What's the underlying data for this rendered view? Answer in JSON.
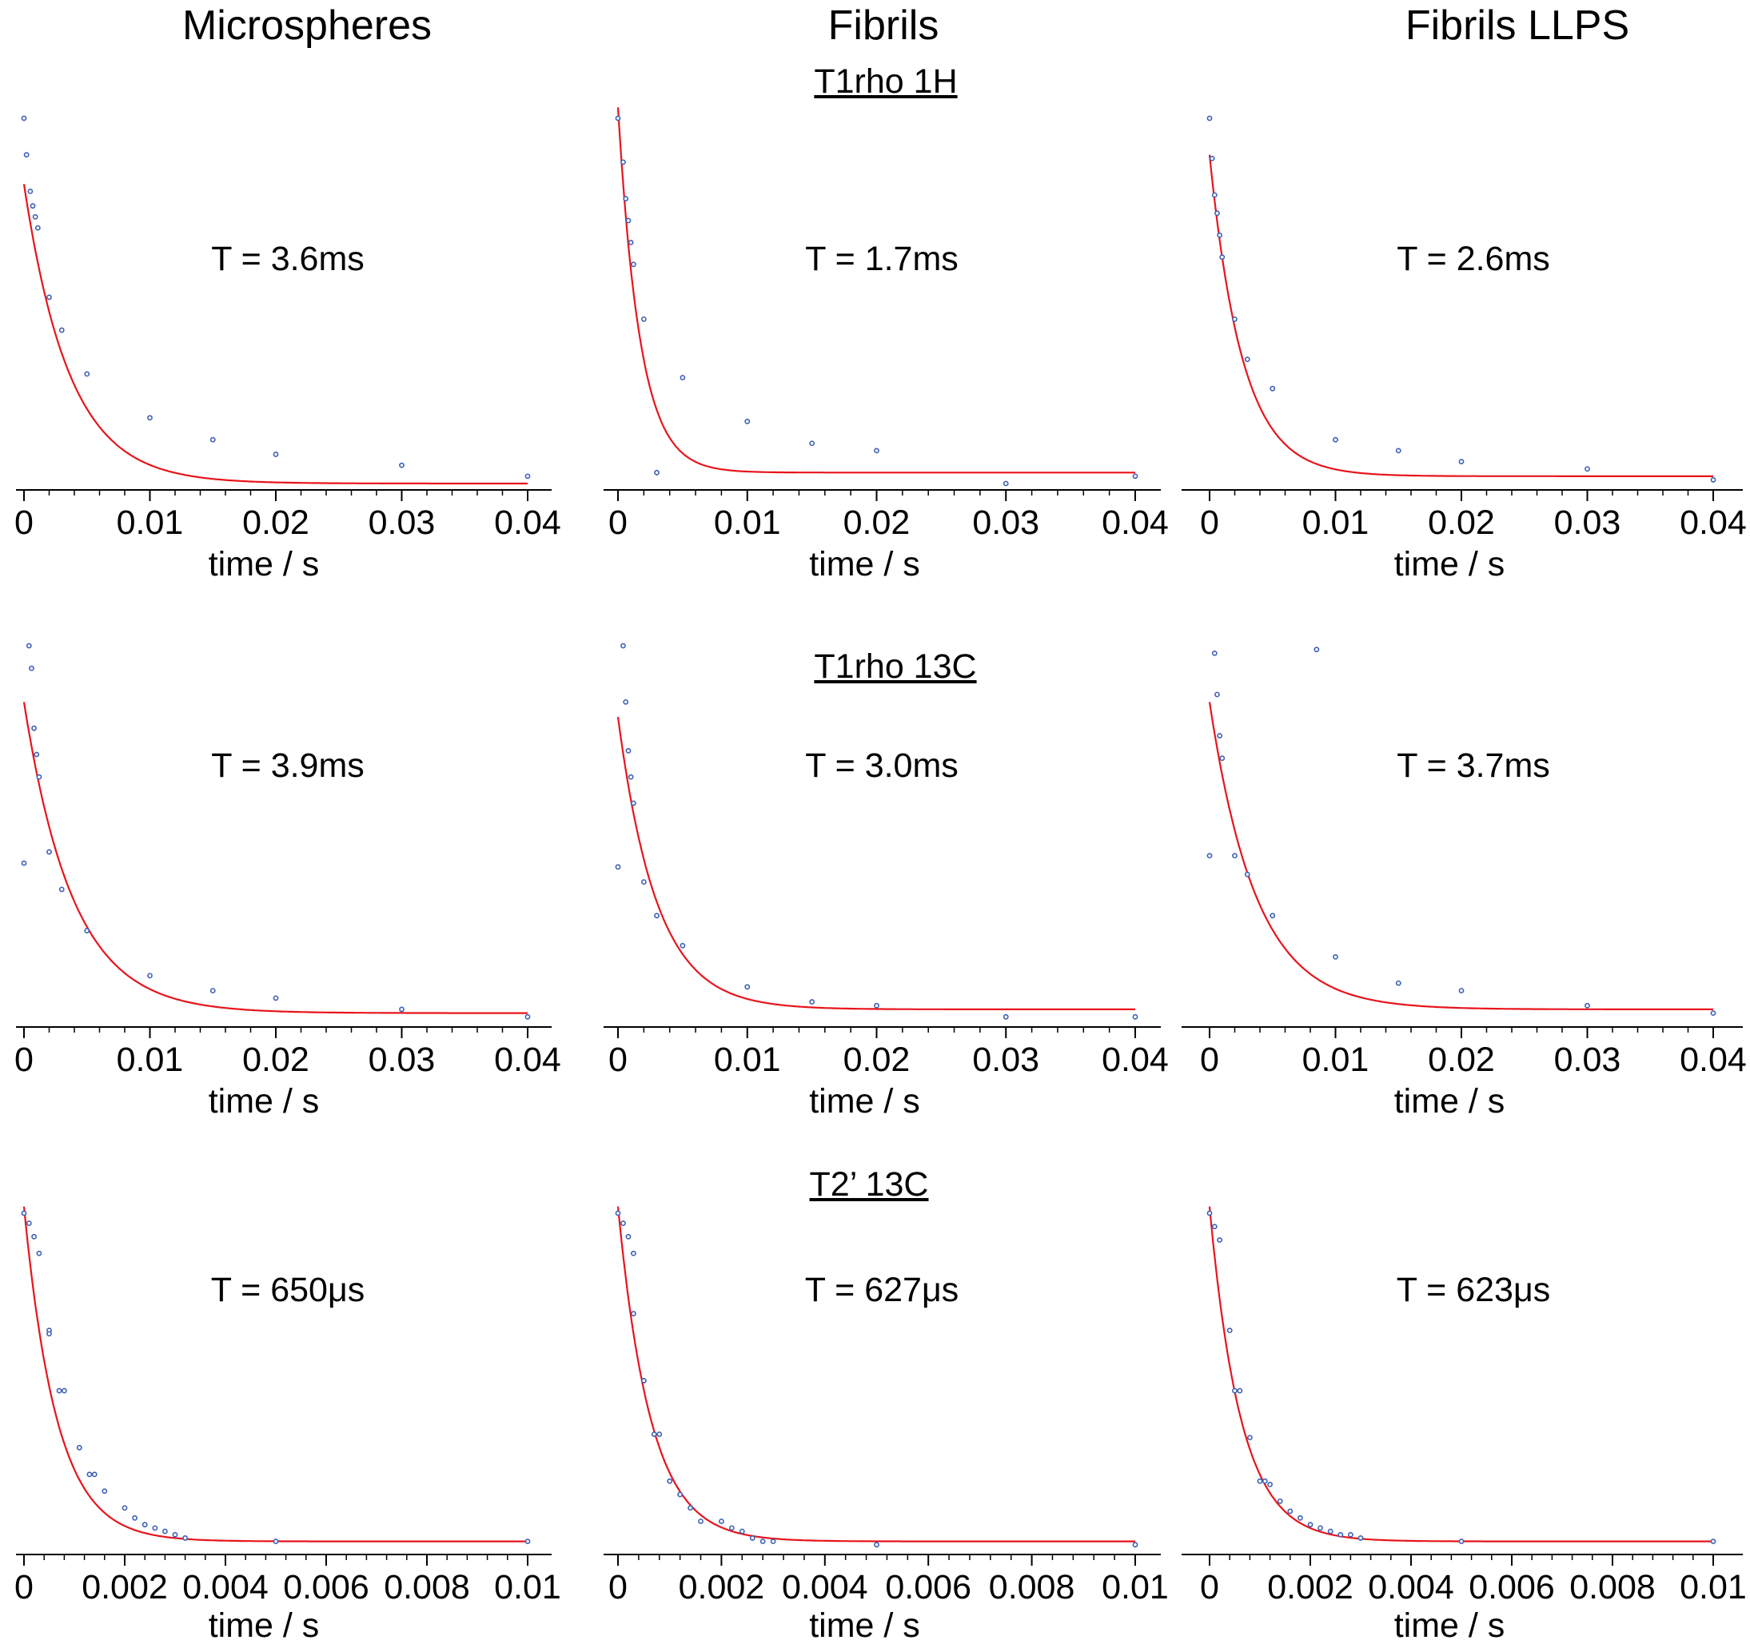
{
  "columns": [
    "Microspheres",
    "Fibrils",
    "Fibrils LLPS"
  ],
  "rows": [
    "T1rho 1H",
    "T1rho 13C",
    "T2’ 13C"
  ],
  "colors": {
    "fit": "#e8141b",
    "points": "#3d5fb5",
    "axis": "#000000"
  },
  "chart_data": [
    {
      "type": "scatter",
      "row": 0,
      "col": 0,
      "annotation": "T = 3.6ms",
      "xlabel": "time / s",
      "xticks": [
        "0",
        "0.01",
        "0.02",
        "0.03",
        "0.04"
      ],
      "xtick_values": [
        0,
        0.01,
        0.02,
        0.03,
        0.04
      ],
      "xlim": [
        -0.0005,
        0.042
      ],
      "fit": {
        "a": 0.82,
        "tau": 0.0036,
        "c": 0.0
      },
      "points": [
        [
          0.0,
          1.0
        ],
        [
          0.0002,
          0.9
        ],
        [
          0.0005,
          0.8
        ],
        [
          0.0007,
          0.76
        ],
        [
          0.0009,
          0.73
        ],
        [
          0.0011,
          0.7
        ],
        [
          0.002,
          0.51
        ],
        [
          0.003,
          0.42
        ],
        [
          0.005,
          0.3
        ],
        [
          0.01,
          0.18
        ],
        [
          0.015,
          0.12
        ],
        [
          0.02,
          0.08
        ],
        [
          0.03,
          0.05
        ],
        [
          0.04,
          0.02
        ]
      ]
    },
    {
      "type": "scatter",
      "row": 0,
      "col": 1,
      "annotation": "T = 1.7ms",
      "xlabel": "time / s",
      "xticks": [
        "0",
        "0.01",
        "0.02",
        "0.03",
        "0.04"
      ],
      "xtick_values": [
        0,
        0.01,
        0.02,
        0.03,
        0.04
      ],
      "xlim": [
        -0.0005,
        0.042
      ],
      "fit": {
        "a": 1.0,
        "tau": 0.0017,
        "c": 0.03
      },
      "points": [
        [
          0.0,
          1.0
        ],
        [
          0.0004,
          0.88
        ],
        [
          0.0006,
          0.78
        ],
        [
          0.0008,
          0.72
        ],
        [
          0.001,
          0.66
        ],
        [
          0.0012,
          0.6
        ],
        [
          0.002,
          0.45
        ],
        [
          0.003,
          0.03
        ],
        [
          0.005,
          0.29
        ],
        [
          0.01,
          0.17
        ],
        [
          0.015,
          0.11
        ],
        [
          0.02,
          0.09
        ],
        [
          0.03,
          0.0
        ],
        [
          0.04,
          0.02
        ]
      ]
    },
    {
      "type": "scatter",
      "row": 0,
      "col": 2,
      "annotation": "T = 2.6ms",
      "xlabel": "time / s",
      "xticks": [
        "0",
        "0.01",
        "0.02",
        "0.03",
        "0.04"
      ],
      "xtick_values": [
        0,
        0.01,
        0.02,
        0.03,
        0.04
      ],
      "xlim": [
        -0.0005,
        0.042
      ],
      "fit": {
        "a": 0.88,
        "tau": 0.0026,
        "c": 0.02
      },
      "points": [
        [
          0.0,
          1.0
        ],
        [
          0.0002,
          0.89
        ],
        [
          0.0004,
          0.79
        ],
        [
          0.0006,
          0.74
        ],
        [
          0.0008,
          0.68
        ],
        [
          0.001,
          0.62
        ],
        [
          0.002,
          0.45
        ],
        [
          0.003,
          0.34
        ],
        [
          0.005,
          0.26
        ],
        [
          0.01,
          0.12
        ],
        [
          0.015,
          0.09
        ],
        [
          0.02,
          0.06
        ],
        [
          0.03,
          0.04
        ],
        [
          0.04,
          0.01
        ]
      ]
    },
    {
      "type": "scatter",
      "row": 1,
      "col": 0,
      "annotation": "T = 3.9ms",
      "xlabel": "time / s",
      "xticks": [
        "0",
        "0.01",
        "0.02",
        "0.03",
        "0.04"
      ],
      "xtick_values": [
        0,
        0.01,
        0.02,
        0.03,
        0.04
      ],
      "xlim": [
        -0.0005,
        0.042
      ],
      "fit": {
        "a": 0.83,
        "tau": 0.0039,
        "c": 0.02
      },
      "points": [
        [
          0.0,
          0.42
        ],
        [
          0.0004,
          1.0
        ],
        [
          0.0006,
          0.94
        ],
        [
          0.0008,
          0.78
        ],
        [
          0.001,
          0.71
        ],
        [
          0.0012,
          0.65
        ],
        [
          0.002,
          0.45
        ],
        [
          0.003,
          0.35
        ],
        [
          0.005,
          0.24
        ],
        [
          0.01,
          0.12
        ],
        [
          0.015,
          0.08
        ],
        [
          0.02,
          0.06
        ],
        [
          0.03,
          0.03
        ],
        [
          0.04,
          0.01
        ]
      ]
    },
    {
      "type": "scatter",
      "row": 1,
      "col": 1,
      "annotation": "T = 3.0ms",
      "xlabel": "time / s",
      "xticks": [
        "0",
        "0.01",
        "0.02",
        "0.03",
        "0.04"
      ],
      "xtick_values": [
        0,
        0.01,
        0.02,
        0.03,
        0.04
      ],
      "xlim": [
        -0.0005,
        0.042
      ],
      "fit": {
        "a": 0.78,
        "tau": 0.003,
        "c": 0.03
      },
      "points": [
        [
          0.0,
          0.41
        ],
        [
          0.0004,
          1.0
        ],
        [
          0.0006,
          0.85
        ],
        [
          0.0008,
          0.72
        ],
        [
          0.001,
          0.65
        ],
        [
          0.0012,
          0.58
        ],
        [
          0.002,
          0.37
        ],
        [
          0.003,
          0.28
        ],
        [
          0.005,
          0.2
        ],
        [
          0.01,
          0.09
        ],
        [
          0.015,
          0.05
        ],
        [
          0.02,
          0.04
        ],
        [
          0.03,
          0.01
        ],
        [
          0.04,
          0.01
        ]
      ]
    },
    {
      "type": "scatter",
      "row": 1,
      "col": 2,
      "annotation": "T = 3.7ms",
      "xlabel": "time / s",
      "xticks": [
        "0",
        "0.01",
        "0.02",
        "0.03",
        "0.04"
      ],
      "xtick_values": [
        0,
        0.01,
        0.02,
        0.03,
        0.04
      ],
      "xlim": [
        -0.0005,
        0.042
      ],
      "fit": {
        "a": 0.82,
        "tau": 0.0037,
        "c": 0.03
      },
      "points": [
        [
          0.0,
          0.44
        ],
        [
          0.0004,
          0.98
        ],
        [
          0.0006,
          0.87
        ],
        [
          0.0008,
          0.76
        ],
        [
          0.001,
          0.7
        ],
        [
          0.002,
          0.44
        ],
        [
          0.003,
          0.39
        ],
        [
          0.005,
          0.28
        ],
        [
          0.0085,
          0.99
        ],
        [
          0.01,
          0.17
        ],
        [
          0.015,
          0.1
        ],
        [
          0.02,
          0.08
        ],
        [
          0.03,
          0.04
        ],
        [
          0.04,
          0.02
        ]
      ]
    },
    {
      "type": "scatter",
      "row": 2,
      "col": 0,
      "annotation": "T = 650μs",
      "xlabel": "time / s",
      "xticks": [
        "0",
        "0.002",
        "0.004",
        "0.006",
        "0.008",
        "0.01"
      ],
      "xtick_values": [
        0,
        0.002,
        0.004,
        0.006,
        0.008,
        0.01
      ],
      "xlim": [
        -0.0002,
        0.0104
      ],
      "fit": {
        "a": 1.0,
        "tau": 0.00065,
        "c": 0.02
      },
      "points": [
        [
          0.0,
          1.0
        ],
        [
          0.0001,
          0.97
        ],
        [
          0.0002,
          0.93
        ],
        [
          0.0003,
          0.88
        ],
        [
          0.0005,
          0.65
        ],
        [
          0.0005,
          0.64
        ],
        [
          0.0007,
          0.47
        ],
        [
          0.0008,
          0.47
        ],
        [
          0.0011,
          0.3
        ],
        [
          0.0013,
          0.22
        ],
        [
          0.0014,
          0.22
        ],
        [
          0.0016,
          0.17
        ],
        [
          0.002,
          0.12
        ],
        [
          0.0022,
          0.09
        ],
        [
          0.0024,
          0.07
        ],
        [
          0.0026,
          0.06
        ],
        [
          0.0028,
          0.05
        ],
        [
          0.003,
          0.04
        ],
        [
          0.0032,
          0.03
        ],
        [
          0.005,
          0.02
        ],
        [
          0.01,
          0.02
        ]
      ]
    },
    {
      "type": "scatter",
      "row": 2,
      "col": 1,
      "annotation": "T = 627μs",
      "xlabel": "time / s",
      "xticks": [
        "0",
        "0.002",
        "0.004",
        "0.006",
        "0.008",
        "0.01"
      ],
      "xtick_values": [
        0,
        0.002,
        0.004,
        0.006,
        0.008,
        0.01
      ],
      "xlim": [
        -0.0002,
        0.0104
      ],
      "fit": {
        "a": 1.0,
        "tau": 0.00063,
        "c": 0.02
      },
      "points": [
        [
          0.0,
          1.0
        ],
        [
          0.0001,
          0.97
        ],
        [
          0.0002,
          0.93
        ],
        [
          0.0003,
          0.88
        ],
        [
          0.0003,
          0.7
        ],
        [
          0.0005,
          0.5
        ],
        [
          0.0005,
          0.5
        ],
        [
          0.0007,
          0.34
        ],
        [
          0.0008,
          0.34
        ],
        [
          0.001,
          0.2
        ],
        [
          0.0012,
          0.16
        ],
        [
          0.0014,
          0.12
        ],
        [
          0.0016,
          0.08
        ],
        [
          0.002,
          0.08
        ],
        [
          0.0022,
          0.06
        ],
        [
          0.0024,
          0.05
        ],
        [
          0.0026,
          0.03
        ],
        [
          0.0028,
          0.02
        ],
        [
          0.003,
          0.02
        ],
        [
          0.005,
          0.01
        ],
        [
          0.01,
          0.01
        ]
      ]
    },
    {
      "type": "scatter",
      "row": 2,
      "col": 2,
      "annotation": "T = 623μs",
      "xlabel": "time / s",
      "xticks": [
        "0",
        "0.002",
        "0.004",
        "0.006",
        "0.008",
        "0.01"
      ],
      "xtick_values": [
        0,
        0.002,
        0.004,
        0.006,
        0.008,
        0.01
      ],
      "xlim": [
        -0.0002,
        0.0104
      ],
      "fit": {
        "a": 1.0,
        "tau": 0.00062,
        "c": 0.02
      },
      "points": [
        [
          0.0,
          1.0
        ],
        [
          0.0001,
          0.96
        ],
        [
          0.0002,
          0.92
        ],
        [
          0.0004,
          0.65
        ],
        [
          0.0005,
          0.47
        ],
        [
          0.0006,
          0.47
        ],
        [
          0.0008,
          0.33
        ],
        [
          0.001,
          0.2
        ],
        [
          0.0011,
          0.2
        ],
        [
          0.0012,
          0.19
        ],
        [
          0.0014,
          0.14
        ],
        [
          0.0016,
          0.11
        ],
        [
          0.0018,
          0.09
        ],
        [
          0.002,
          0.07
        ],
        [
          0.0022,
          0.06
        ],
        [
          0.0024,
          0.05
        ],
        [
          0.0026,
          0.04
        ],
        [
          0.0028,
          0.04
        ],
        [
          0.003,
          0.03
        ],
        [
          0.005,
          0.02
        ],
        [
          0.01,
          0.02
        ]
      ]
    }
  ]
}
